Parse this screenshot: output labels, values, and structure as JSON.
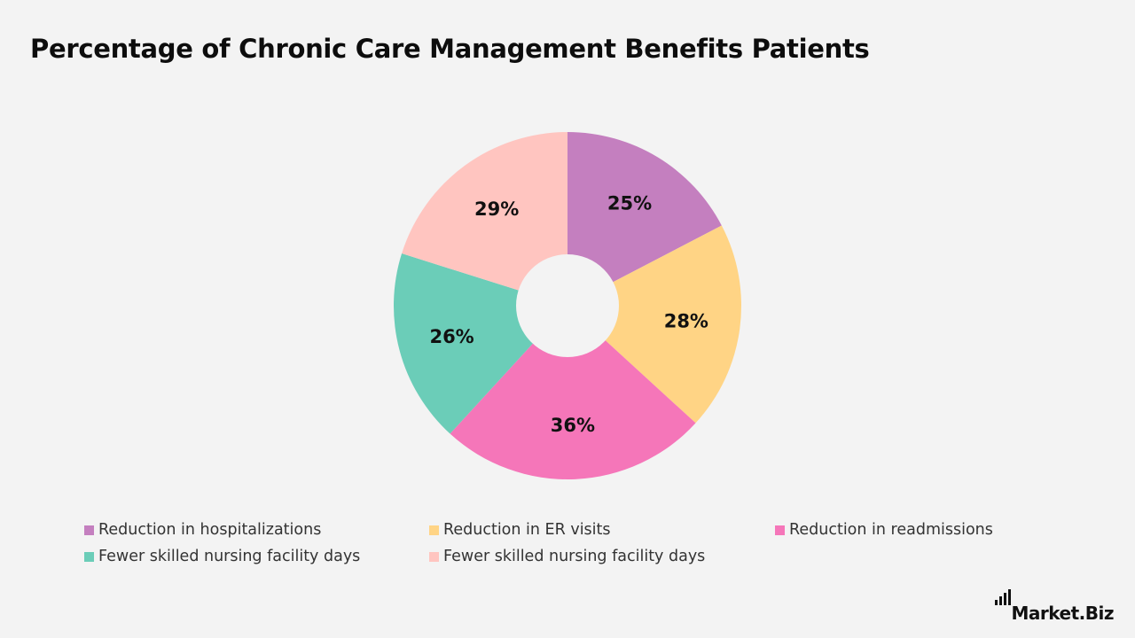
{
  "chart_data": {
    "type": "pie",
    "title": "Percentage of Chronic Care Management Benefits Patients",
    "categories": [
      "Reduction in hospitalizations",
      "Reduction in ER visits",
      "Reduction in readmissions",
      "Fewer skilled nursing facility days",
      "Fewer skilled nursing facility days"
    ],
    "values": [
      25,
      28,
      36,
      26,
      29
    ],
    "value_labels": [
      "25%",
      "28%",
      "36%",
      "26%",
      "29%"
    ],
    "colors": [
      "#c47fbf",
      "#ffd485",
      "#f576b9",
      "#6bcdb8",
      "#ffc5c0"
    ],
    "donut": true,
    "start_angle": "top, clockwise",
    "legend": "bottom"
  },
  "brand": {
    "name": "Market.Biz"
  }
}
